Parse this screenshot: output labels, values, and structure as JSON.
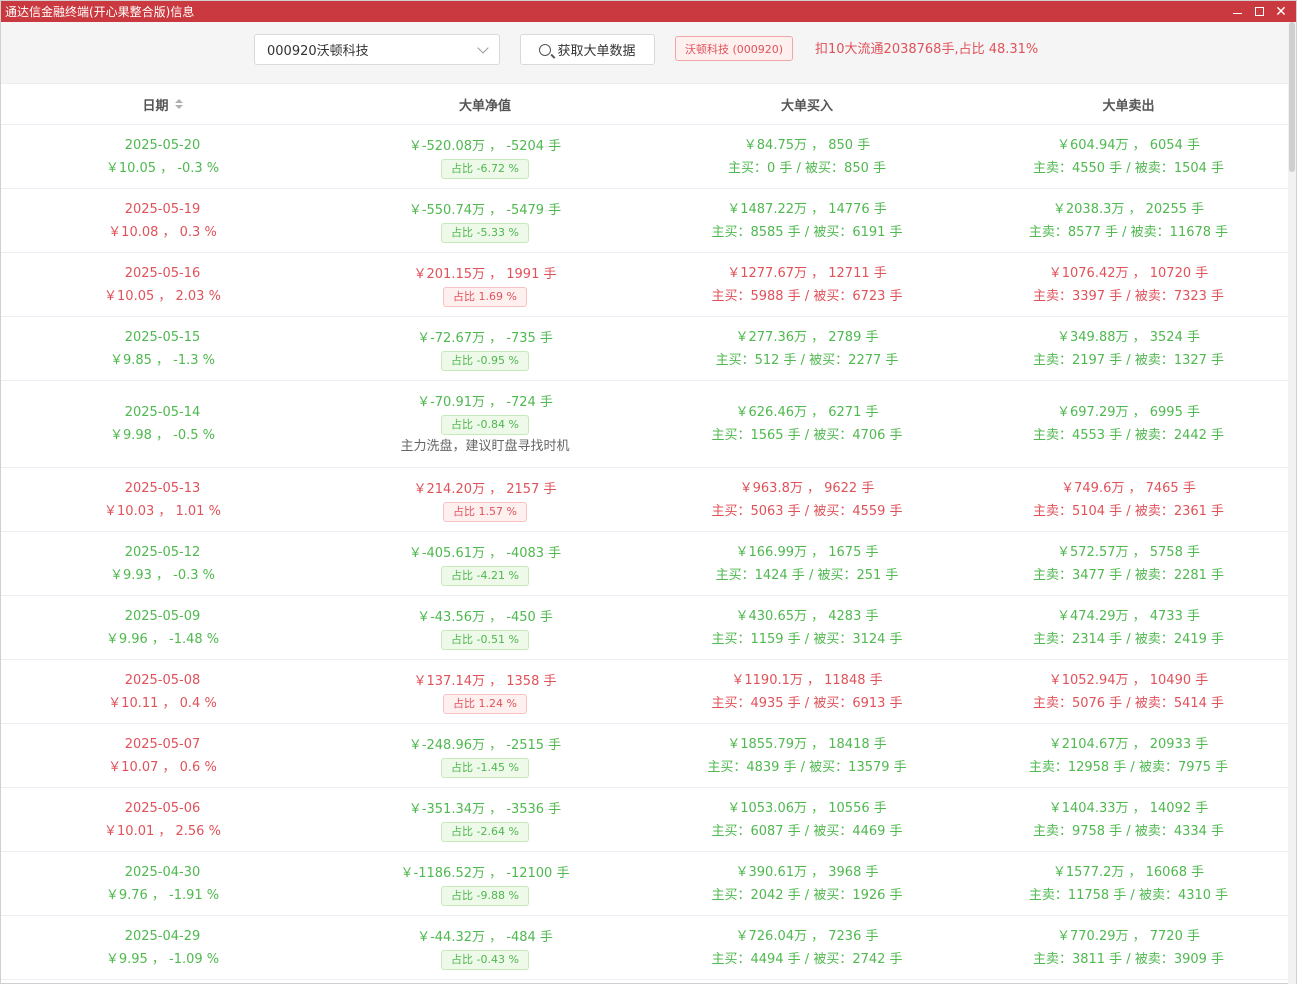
{
  "window": {
    "title": "通达信金融终端(开心果整合版)信息"
  },
  "toolbar": {
    "stock_select_value": "000920沃顿科技",
    "fetch_button_label": "获取大单数据",
    "stock_tag": "沃顿科技 (000920)",
    "summary": "扣10大流通2038768手,占比 48.31%"
  },
  "table": {
    "headers": {
      "date": "日期",
      "net": "大单净值",
      "buy": "大单买入",
      "sell": "大单卖出"
    },
    "rows": [
      {
        "color": "green",
        "date": "2025-05-20",
        "price": "￥10.05 ， -0.3 %",
        "net_main": "￥-520.08万 ， -5204 手",
        "net_pct": "占比 -6.72 %",
        "net_color": "green",
        "buy_main": "￥84.75万 ， 850 手",
        "buy_sub": "主买：0 手 / 被买：850 手",
        "buy_color": "green",
        "sell_main": "￥604.94万 ， 6054 手",
        "sell_sub": "主卖：4550 手 / 被卖：1504 手",
        "sell_color": "green"
      },
      {
        "color": "red",
        "date": "2025-05-19",
        "price": "￥10.08 ， 0.3 %",
        "net_main": "￥-550.74万 ， -5479 手",
        "net_pct": "占比 -5.33 %",
        "net_color": "green",
        "buy_main": "￥1487.22万 ， 14776 手",
        "buy_sub": "主买：8585 手 / 被买：6191 手",
        "buy_color": "green",
        "sell_main": "￥2038.3万 ， 20255 手",
        "sell_sub": "主卖：8577 手 / 被卖：11678 手",
        "sell_color": "green"
      },
      {
        "color": "red",
        "date": "2025-05-16",
        "price": "￥10.05 ， 2.03 %",
        "net_main": "￥201.15万 ， 1991 手",
        "net_pct": "占比 1.69 %",
        "net_color": "red",
        "buy_main": "￥1277.67万 ， 12711 手",
        "buy_sub": "主买：5988 手 / 被买：6723 手",
        "buy_color": "red",
        "sell_main": "￥1076.42万 ， 10720 手",
        "sell_sub": "主卖：3397 手 / 被卖：7323 手",
        "sell_color": "red"
      },
      {
        "color": "green",
        "date": "2025-05-15",
        "price": "￥9.85 ， -1.3 %",
        "net_main": "￥-72.67万 ， -735 手",
        "net_pct": "占比 -0.95 %",
        "net_color": "green",
        "buy_main": "￥277.36万 ， 2789 手",
        "buy_sub": "主买：512 手 / 被买：2277 手",
        "buy_color": "green",
        "sell_main": "￥349.88万 ， 3524 手",
        "sell_sub": "主卖：2197 手 / 被卖：1327 手",
        "sell_color": "green"
      },
      {
        "color": "green",
        "date": "2025-05-14",
        "price": "￥9.98 ， -0.5 %",
        "net_main": "￥-70.91万 ， -724 手",
        "net_pct": "占比 -0.84 %",
        "net_color": "green",
        "note": "主力洗盘，建议盯盘寻找时机",
        "buy_main": "￥626.46万 ， 6271 手",
        "buy_sub": "主买：1565 手 / 被买：4706 手",
        "buy_color": "green",
        "sell_main": "￥697.29万 ， 6995 手",
        "sell_sub": "主卖：4553 手 / 被卖：2442 手",
        "sell_color": "green"
      },
      {
        "color": "red",
        "date": "2025-05-13",
        "price": "￥10.03 ， 1.01 %",
        "net_main": "￥214.20万 ， 2157 手",
        "net_pct": "占比 1.57 %",
        "net_color": "red",
        "buy_main": "￥963.8万 ， 9622 手",
        "buy_sub": "主买：5063 手 / 被买：4559 手",
        "buy_color": "red",
        "sell_main": "￥749.6万 ， 7465 手",
        "sell_sub": "主卖：5104 手 / 被卖：2361 手",
        "sell_color": "red"
      },
      {
        "color": "green",
        "date": "2025-05-12",
        "price": "￥9.93 ， -0.3 %",
        "net_main": "￥-405.61万 ， -4083 手",
        "net_pct": "占比 -4.21 %",
        "net_color": "green",
        "buy_main": "￥166.99万 ， 1675 手",
        "buy_sub": "主买：1424 手 / 被买：251 手",
        "buy_color": "green",
        "sell_main": "￥572.57万 ， 5758 手",
        "sell_sub": "主卖：3477 手 / 被卖：2281 手",
        "sell_color": "green"
      },
      {
        "color": "green",
        "date": "2025-05-09",
        "price": "￥9.96 ， -1.48 %",
        "net_main": "￥-43.56万 ， -450 手",
        "net_pct": "占比 -0.51 %",
        "net_color": "green",
        "buy_main": "￥430.65万 ， 4283 手",
        "buy_sub": "主买：1159 手 / 被买：3124 手",
        "buy_color": "green",
        "sell_main": "￥474.29万 ， 4733 手",
        "sell_sub": "主卖：2314 手 / 被卖：2419 手",
        "sell_color": "green"
      },
      {
        "color": "red",
        "date": "2025-05-08",
        "price": "￥10.11 ， 0.4 %",
        "net_main": "￥137.14万 ， 1358 手",
        "net_pct": "占比 1.24 %",
        "net_color": "red",
        "buy_main": "￥1190.1万 ， 11848 手",
        "buy_sub": "主买：4935 手 / 被买：6913 手",
        "buy_color": "red",
        "sell_main": "￥1052.94万 ， 10490 手",
        "sell_sub": "主卖：5076 手 / 被卖：5414 手",
        "sell_color": "red"
      },
      {
        "color": "red",
        "date": "2025-05-07",
        "price": "￥10.07 ， 0.6 %",
        "net_main": "￥-248.96万 ， -2515 手",
        "net_pct": "占比 -1.45 %",
        "net_color": "green",
        "buy_main": "￥1855.79万 ， 18418 手",
        "buy_sub": "主买：4839 手 / 被买：13579 手",
        "buy_color": "green",
        "sell_main": "￥2104.67万 ， 20933 手",
        "sell_sub": "主卖：12958 手 / 被卖：7975 手",
        "sell_color": "green"
      },
      {
        "color": "red",
        "date": "2025-05-06",
        "price": "￥10.01 ， 2.56 %",
        "net_main": "￥-351.34万 ， -3536 手",
        "net_pct": "占比 -2.64 %",
        "net_color": "green",
        "buy_main": "￥1053.06万 ， 10556 手",
        "buy_sub": "主买：6087 手 / 被买：4469 手",
        "buy_color": "green",
        "sell_main": "￥1404.33万 ， 14092 手",
        "sell_sub": "主卖：9758 手 / 被卖：4334 手",
        "sell_color": "green"
      },
      {
        "color": "green",
        "date": "2025-04-30",
        "price": "￥9.76 ， -1.91 %",
        "net_main": "￥-1186.52万 ， -12100 手",
        "net_pct": "占比 -9.88 %",
        "net_color": "green",
        "buy_main": "￥390.61万 ， 3968 手",
        "buy_sub": "主买：2042 手 / 被买：1926 手",
        "buy_color": "green",
        "sell_main": "￥1577.2万 ， 16068 手",
        "sell_sub": "主卖：11758 手 / 被卖：4310 手",
        "sell_color": "green"
      },
      {
        "color": "green",
        "date": "2025-04-29",
        "price": "￥9.95 ， -1.09 %",
        "net_main": "￥-44.32万 ， -484 手",
        "net_pct": "占比 -0.43 %",
        "net_color": "green",
        "buy_main": "￥726.04万 ， 7236 手",
        "buy_sub": "主买：4494 手 / 被买：2742 手",
        "buy_color": "green",
        "sell_main": "￥770.29万 ， 7720 手",
        "sell_sub": "主卖：3811 手 / 被卖：3909 手",
        "sell_color": "green"
      }
    ]
  },
  "colors": {
    "title_bar": "#c9393f",
    "up": "#e0525a",
    "down": "#4fb84f"
  }
}
